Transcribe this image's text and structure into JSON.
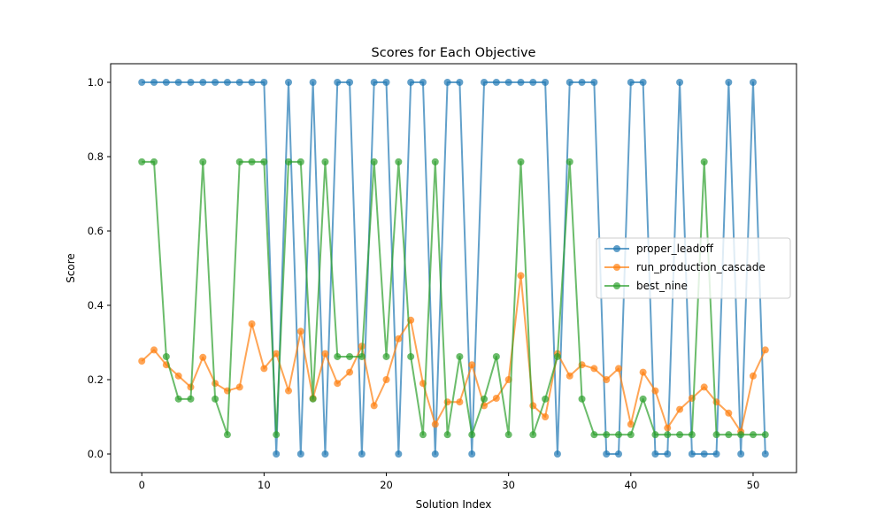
{
  "chart_data": {
    "type": "line",
    "title": "Scores for Each Objective",
    "xlabel": "Solution Index",
    "ylabel": "Score",
    "xlim": [
      -2.55,
      53.55
    ],
    "ylim": [
      -0.05,
      1.05
    ],
    "xticks": [
      0,
      10,
      20,
      30,
      40,
      50
    ],
    "yticks": [
      0.0,
      0.2,
      0.4,
      0.6,
      0.8,
      1.0
    ],
    "legend_position": "center-right",
    "grid": false,
    "x": [
      0,
      1,
      2,
      3,
      4,
      5,
      6,
      7,
      8,
      9,
      10,
      11,
      12,
      13,
      14,
      15,
      16,
      17,
      18,
      19,
      20,
      21,
      22,
      23,
      24,
      25,
      26,
      27,
      28,
      29,
      30,
      31,
      32,
      33,
      34,
      35,
      36,
      37,
      38,
      39,
      40,
      41,
      42,
      43,
      44,
      45,
      46,
      47,
      48,
      49,
      50,
      51
    ],
    "series": [
      {
        "name": "proper_leadoff",
        "color": "#1f77b4",
        "values": [
          1,
          1,
          1,
          1,
          1,
          1,
          1,
          1,
          1,
          1,
          1,
          0,
          1,
          0,
          1,
          0,
          1,
          1,
          0,
          1,
          1,
          0,
          1,
          1,
          0,
          1,
          1,
          0,
          1,
          1,
          1,
          1,
          1,
          1,
          0,
          1,
          1,
          1,
          0,
          0,
          1,
          1,
          0,
          0,
          1,
          0,
          0,
          0,
          1,
          0,
          1,
          0
        ]
      },
      {
        "name": "run_production_cascade",
        "color": "#ff7f0e",
        "values": [
          0.25,
          0.28,
          0.24,
          0.21,
          0.18,
          0.26,
          0.19,
          0.17,
          0.18,
          0.35,
          0.23,
          0.27,
          0.17,
          0.33,
          0.15,
          0.27,
          0.19,
          0.22,
          0.29,
          0.13,
          0.2,
          0.31,
          0.36,
          0.19,
          0.08,
          0.14,
          0.14,
          0.24,
          0.13,
          0.15,
          0.2,
          0.48,
          0.13,
          0.1,
          0.27,
          0.21,
          0.24,
          0.23,
          0.2,
          0.23,
          0.08,
          0.22,
          0.17,
          0.07,
          0.12,
          0.15,
          0.18,
          0.14,
          0.11,
          0.06,
          0.21,
          0.28
        ]
      },
      {
        "name": "best_nine",
        "color": "#2ca02c",
        "values": [
          0.786,
          0.786,
          0.262,
          0.148,
          0.148,
          0.786,
          0.148,
          0.052,
          0.786,
          0.786,
          0.786,
          0.052,
          0.786,
          0.786,
          0.148,
          0.786,
          0.262,
          0.262,
          0.262,
          0.786,
          0.262,
          0.786,
          0.262,
          0.052,
          0.786,
          0.052,
          0.262,
          0.052,
          0.148,
          0.262,
          0.052,
          0.786,
          0.052,
          0.148,
          0.262,
          0.786,
          0.148,
          0.052,
          0.052,
          0.052,
          0.052,
          0.148,
          0.052,
          0.052,
          0.052,
          0.052,
          0.786,
          0.052,
          0.052,
          0.052,
          0.052,
          0.052
        ]
      }
    ]
  }
}
